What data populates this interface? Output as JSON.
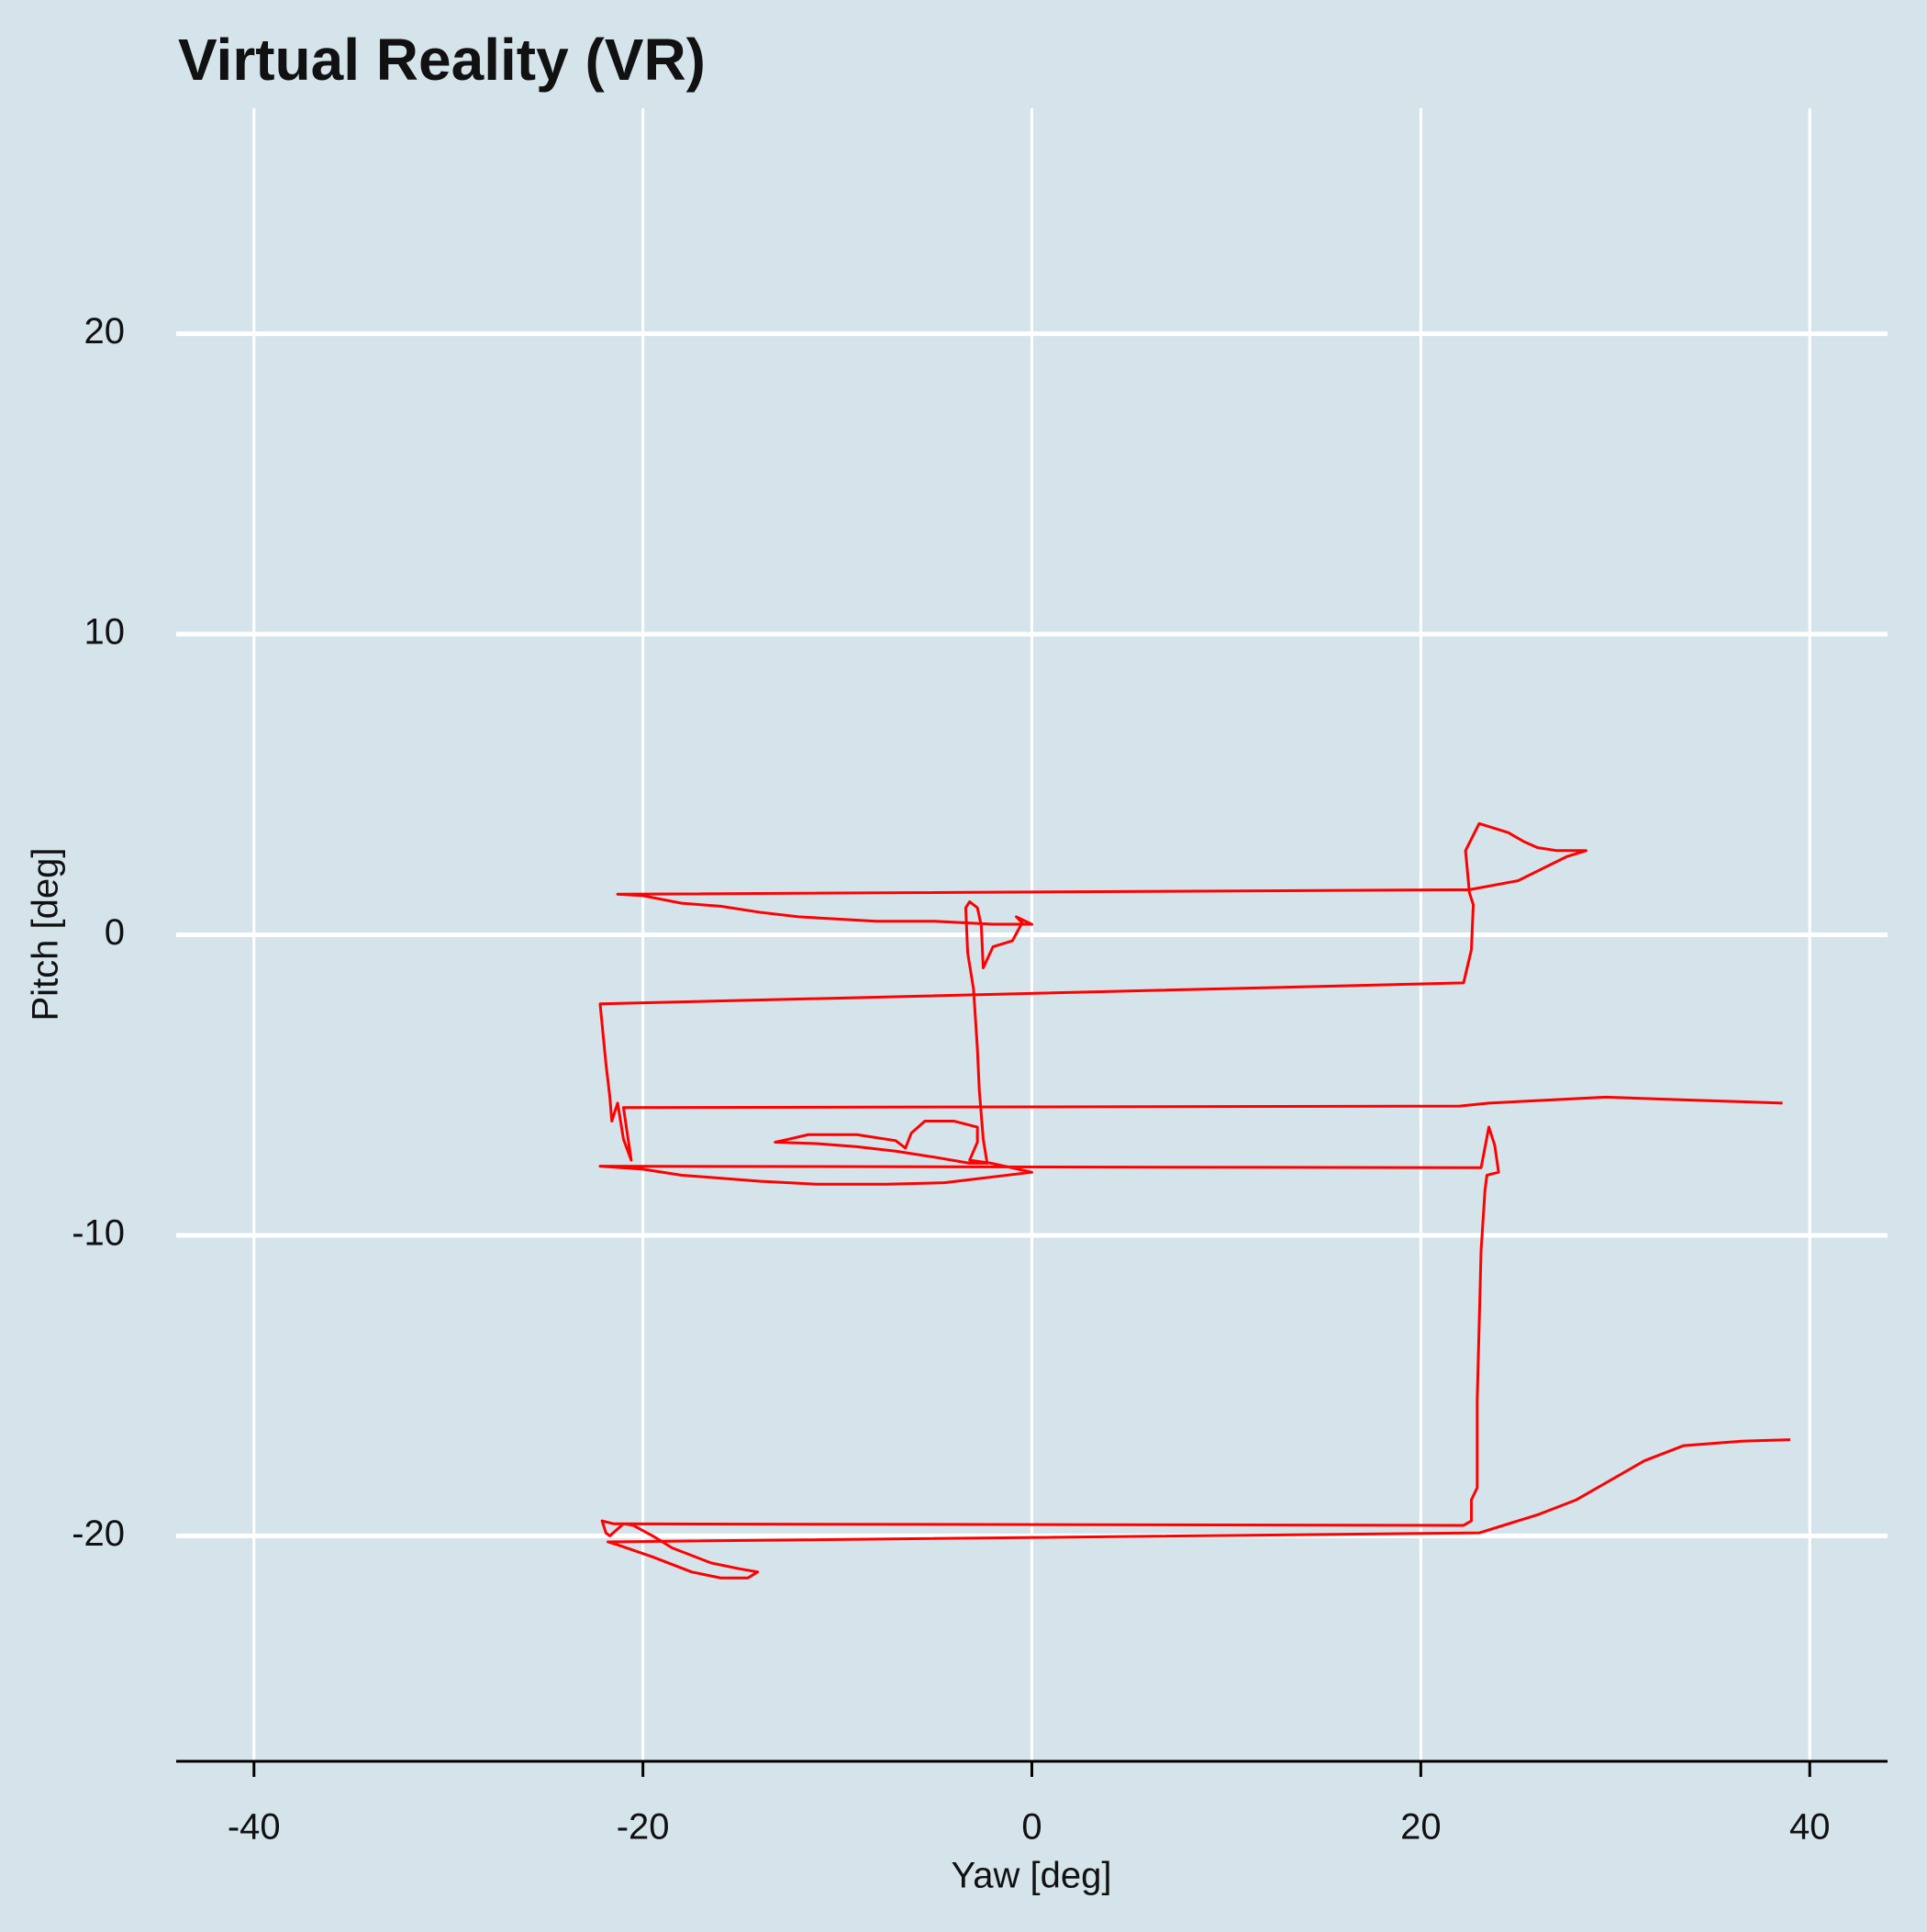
{
  "chart_data": {
    "type": "line",
    "title": "Virtual Reality (VR)",
    "x_label": "Yaw [deg]",
    "y_label": "Pitch [deg]",
    "series": [
      {
        "color": "#ff0000",
        "x": [
          39,
          36.5,
          33.5,
          31.5,
          28,
          26,
          23,
          -21.8,
          -21.3,
          -19.5,
          -17.5,
          -16,
          -14.6,
          -14.1,
          -15,
          -16.5,
          -18.5,
          -19.5,
          -20.5,
          -21,
          -21.7,
          -21.9,
          -22.1,
          -21.5,
          22.2,
          22.6,
          22.6,
          22.9,
          22.9,
          23.1,
          23.3,
          23.4,
          24,
          23.8,
          23.5,
          23.1,
          -22.2,
          -20,
          -18,
          -14,
          -11,
          -7.5,
          -4.5,
          0,
          -2.1,
          -3.2,
          -2.8,
          -2.8,
          -4,
          -5.5,
          -6.2,
          -6.5,
          -7,
          -9,
          -11.5,
          -12.5,
          -13.2,
          -11,
          -9,
          -7,
          -5,
          -3.2,
          -2.3,
          -2.5,
          -2.7,
          -2.8,
          -3,
          -3.3,
          -3.4,
          -3.2,
          -2.8,
          -2.6,
          -2.5,
          -2,
          -1.5,
          -1,
          -0.5,
          -0.8,
          0,
          -2,
          -5,
          -8,
          -12,
          -14,
          -16,
          -18,
          -20,
          -21.3,
          22.5,
          25,
          27.5,
          28.5,
          27,
          26,
          25.3,
          24.5,
          23.5,
          23,
          22.3,
          22.5,
          22.7,
          22.6,
          22.2,
          -22.2,
          -21.9,
          -21.7,
          -21.6,
          -21.3,
          -21,
          -20.6,
          -21,
          22,
          23.5,
          26.5,
          29.5,
          33.9,
          38.6
        ],
        "values": [
          -16.8,
          -16.85,
          -17.0,
          -17.5,
          -18.8,
          -19.3,
          -19.9,
          -20.2,
          -20.3,
          -20.7,
          -21.2,
          -21.4,
          -21.4,
          -21.2,
          -21.1,
          -20.9,
          -20.4,
          -20.0,
          -19.65,
          -19.6,
          -20.0,
          -19.9,
          -19.5,
          -19.6,
          -19.65,
          -19.5,
          -18.8,
          -18.4,
          -15.5,
          -10.5,
          -8.5,
          -8.0,
          -7.9,
          -7.0,
          -6.4,
          -7.75,
          -7.7,
          -7.8,
          -8.0,
          -8.2,
          -8.3,
          -8.3,
          -8.25,
          -7.9,
          -7.6,
          -7.5,
          -6.9,
          -6.4,
          -6.2,
          -6.2,
          -6.6,
          -7.1,
          -6.85,
          -6.65,
          -6.65,
          -6.8,
          -6.9,
          -6.95,
          -7.05,
          -7.2,
          -7.4,
          -7.6,
          -7.6,
          -6.8,
          -5.2,
          -3.8,
          -1.8,
          -0.6,
          0.9,
          1.1,
          0.9,
          0.3,
          -1.1,
          -0.4,
          -0.3,
          -0.2,
          0.4,
          0.6,
          0.35,
          0.35,
          0.45,
          0.45,
          0.6,
          0.75,
          0.95,
          1.05,
          1.3,
          1.35,
          1.5,
          1.8,
          2.6,
          2.8,
          2.8,
          2.9,
          3.1,
          3.4,
          3.6,
          3.7,
          2.8,
          1.4,
          1.0,
          -0.5,
          -1.6,
          -2.3,
          -4.3,
          -5.4,
          -6.2,
          -5.6,
          -6.8,
          -7.5,
          -5.75,
          -5.7,
          -5.6,
          -5.5,
          -5.4,
          -5.5,
          -5.6
        ]
      }
    ],
    "xlim": [
      -44,
      44
    ],
    "ylim": [
      -27.5,
      27.5
    ],
    "xticks": [
      -40,
      -20,
      0,
      20,
      40
    ],
    "yticks": [
      -20,
      -10,
      0,
      10,
      20
    ],
    "grid": true
  }
}
